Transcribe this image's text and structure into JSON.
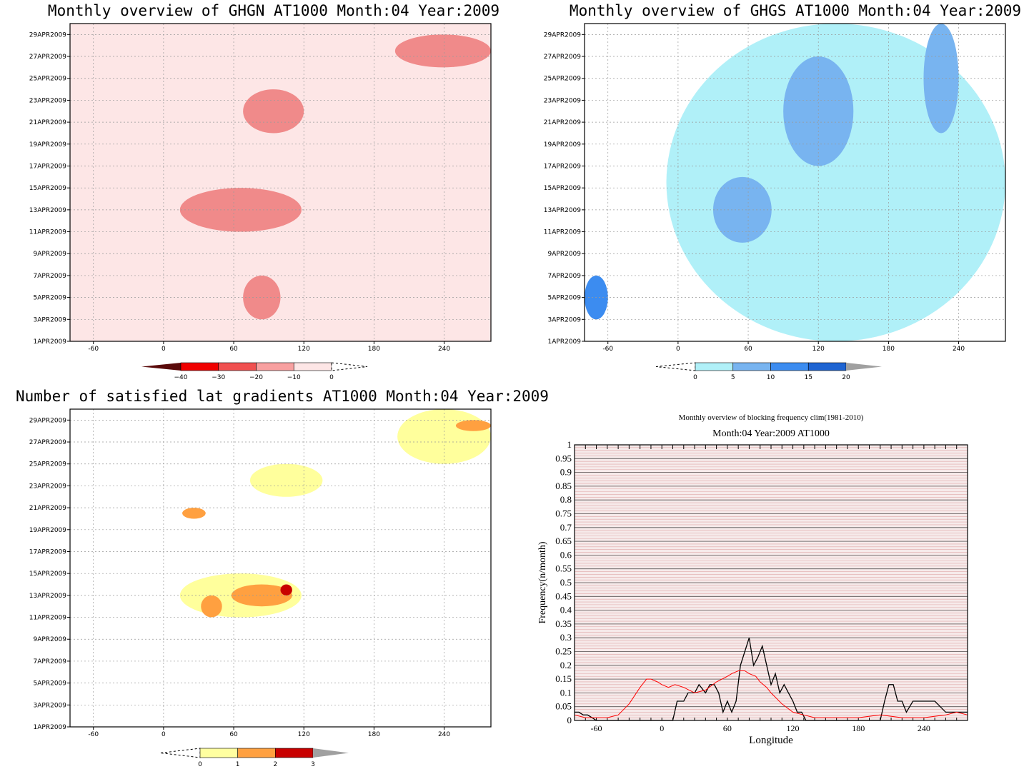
{
  "chart_data": [
    {
      "type": "heatmap",
      "title": "Monthly overview of GHGN AT1000 Month:04 Year:2009",
      "x_ticks": [
        "-60",
        "0",
        "60",
        "120",
        "180",
        "240"
      ],
      "x_tick_values": [
        -60,
        0,
        60,
        120,
        180,
        240
      ],
      "xlim": [
        -80,
        280
      ],
      "y_ticks": [
        "1APR2009",
        "3APR2009",
        "5APR2009",
        "7APR2009",
        "9APR2009",
        "11APR2009",
        "13APR2009",
        "15APR2009",
        "17APR2009",
        "19APR2009",
        "21APR2009",
        "23APR2009",
        "25APR2009",
        "27APR2009",
        "29APR2009"
      ],
      "ylim": [
        1,
        30
      ],
      "grid": true,
      "colorbar": {
        "labels": [
          "−40",
          "−30",
          "−20",
          "−10",
          "0"
        ],
        "colors": [
          "#5a0a0a",
          "#f00000",
          "#f05050",
          "#f8a0a0",
          "#fde6e6"
        ],
        "background": "#fde6e6"
      },
      "regions": [
        {
          "level": "-10 to 0",
          "color": "#fde6e6",
          "note": "field"
        },
        {
          "level": "-20 to -10",
          "color": "#f08a8a",
          "lon": [
            14,
            118
          ],
          "day": [
            11,
            15
          ]
        },
        {
          "level": "-20 to -10",
          "color": "#f08a8a",
          "lon": [
            68,
            120
          ],
          "day": [
            20,
            24
          ]
        },
        {
          "level": "-20 to -10",
          "color": "#f08a8a",
          "lon": [
            198,
            280
          ],
          "day": [
            26,
            29
          ]
        },
        {
          "level": "-20 to -10",
          "color": "#f08a8a",
          "lon": [
            68,
            100
          ],
          "day": [
            3,
            7
          ]
        }
      ]
    },
    {
      "type": "heatmap",
      "title": "Monthly overview of GHGS AT1000 Month:04 Year:2009",
      "x_ticks": [
        "-60",
        "0",
        "60",
        "120",
        "180",
        "240"
      ],
      "x_tick_values": [
        -60,
        0,
        60,
        120,
        180,
        240
      ],
      "xlim": [
        -80,
        280
      ],
      "y_ticks": [
        "1APR2009",
        "3APR2009",
        "5APR2009",
        "7APR2009",
        "9APR2009",
        "11APR2009",
        "13APR2009",
        "15APR2009",
        "17APR2009",
        "19APR2009",
        "21APR2009",
        "23APR2009",
        "25APR2009",
        "27APR2009",
        "29APR2009"
      ],
      "ylim": [
        1,
        30
      ],
      "grid": true,
      "colorbar": {
        "labels": [
          "0",
          "5",
          "10",
          "15",
          "20"
        ],
        "colors": [
          "#b0f0f8",
          "#78b4f0",
          "#3c8cf0",
          "#1e64d2",
          "#a0a0a0"
        ]
      },
      "regions": [
        {
          "level": "0 to 5",
          "color": "#b0f0f8",
          "lon": [
            -10,
            280
          ],
          "day": [
            1,
            30
          ]
        },
        {
          "level": "5 to 10",
          "color": "#78b4f0",
          "lon": [
            90,
            150
          ],
          "day": [
            17,
            27
          ]
        },
        {
          "level": "5 to 10",
          "color": "#78b4f0",
          "lon": [
            210,
            240
          ],
          "day": [
            20,
            30
          ]
        },
        {
          "level": "5 to 10",
          "color": "#78b4f0",
          "lon": [
            30,
            80
          ],
          "day": [
            10,
            16
          ]
        },
        {
          "level": "10 to 15",
          "color": "#3c8cf0",
          "lon": [
            -80,
            -60
          ],
          "day": [
            3,
            7
          ]
        }
      ]
    },
    {
      "type": "heatmap",
      "title": "Number of satisfied lat gradients AT1000 Month:04 Year:2009",
      "x_ticks": [
        "-60",
        "0",
        "60",
        "120",
        "180",
        "240"
      ],
      "x_tick_values": [
        -60,
        0,
        60,
        120,
        180,
        240
      ],
      "xlim": [
        -80,
        280
      ],
      "y_ticks": [
        "1APR2009",
        "3APR2009",
        "5APR2009",
        "7APR2009",
        "9APR2009",
        "11APR2009",
        "13APR2009",
        "15APR2009",
        "17APR2009",
        "19APR2009",
        "21APR2009",
        "23APR2009",
        "25APR2009",
        "27APR2009",
        "29APR2009"
      ],
      "ylim": [
        1,
        30
      ],
      "grid": true,
      "colorbar": {
        "labels": [
          "0",
          "1",
          "2",
          "3"
        ],
        "colors": [
          "#ffffa0",
          "#ffa040",
          "#c80000",
          "#a0a0a0"
        ]
      },
      "regions": [
        {
          "value": 1,
          "color": "#ffff9c",
          "lon": [
            14,
            118
          ],
          "day": [
            11,
            15
          ]
        },
        {
          "value": 2,
          "color": "#ffa040",
          "lon": [
            58,
            110
          ],
          "day": [
            12,
            14
          ]
        },
        {
          "value": 3,
          "color": "#c80000",
          "lon": [
            100,
            110
          ],
          "day": [
            13,
            14
          ]
        },
        {
          "value": 2,
          "color": "#ffa040",
          "lon": [
            32,
            50
          ],
          "day": [
            11,
            13
          ]
        },
        {
          "value": 1,
          "color": "#ffff9c",
          "lon": [
            74,
            136
          ],
          "day": [
            22,
            25
          ]
        },
        {
          "value": 2,
          "color": "#ffa040",
          "lon": [
            16,
            36
          ],
          "day": [
            20,
            21
          ]
        },
        {
          "value": 1,
          "color": "#ffff9c",
          "lon": [
            200,
            280
          ],
          "day": [
            25,
            30
          ]
        },
        {
          "value": 2,
          "color": "#ffa040",
          "lon": [
            250,
            280
          ],
          "day": [
            28,
            29
          ]
        }
      ]
    },
    {
      "type": "line",
      "title": "Monthly overview of blocking frequency clim(1981-2010)",
      "subtitle": "Month:04 Year:2009  AT1000",
      "xlabel": "Longitude",
      "ylabel": "Frequency(n/month)",
      "xlim": [
        -80,
        280
      ],
      "ylim": [
        0,
        1
      ],
      "x_ticks": [
        "-60",
        "0",
        "60",
        "120",
        "180",
        "240"
      ],
      "x_tick_values": [
        -60,
        0,
        60,
        120,
        180,
        240
      ],
      "y_ticks": [
        "0",
        "0.05",
        "0.1",
        "0.15",
        "0.2",
        "0.25",
        "0.3",
        "0.35",
        "0.4",
        "0.45",
        "0.5",
        "0.55",
        "0.6",
        "0.65",
        "0.7",
        "0.75",
        "0.8",
        "0.85",
        "0.9",
        "0.95",
        "1"
      ],
      "y_tick_values": [
        0,
        0.05,
        0.1,
        0.15,
        0.2,
        0.25,
        0.3,
        0.35,
        0.4,
        0.45,
        0.5,
        0.55,
        0.6,
        0.65,
        0.7,
        0.75,
        0.8,
        0.85,
        0.9,
        0.95,
        1
      ],
      "series": [
        {
          "color": "#000000",
          "x": [
            -80,
            -76,
            -72,
            -68,
            -64,
            -60,
            -40,
            -20,
            0,
            10,
            14,
            20,
            24,
            30,
            34,
            40,
            44,
            48,
            52,
            56,
            60,
            64,
            68,
            72,
            76,
            80,
            84,
            88,
            92,
            96,
            100,
            104,
            108,
            112,
            116,
            120,
            124,
            128,
            132,
            136,
            140,
            180,
            200,
            204,
            208,
            212,
            216,
            220,
            224,
            230,
            240,
            250,
            260,
            270,
            275,
            280
          ],
          "y": [
            0.03,
            0.03,
            0.02,
            0.02,
            0.01,
            0,
            0,
            0,
            0,
            0,
            0.07,
            0.07,
            0.1,
            0.1,
            0.13,
            0.1,
            0.13,
            0.13,
            0.1,
            0.03,
            0.07,
            0.03,
            0.07,
            0.2,
            0.25,
            0.3,
            0.2,
            0.23,
            0.27,
            0.2,
            0.13,
            0.17,
            0.1,
            0.13,
            0.1,
            0.07,
            0.03,
            0.03,
            0,
            0,
            0,
            0,
            0,
            0.07,
            0.13,
            0.13,
            0.07,
            0.07,
            0.03,
            0.07,
            0.07,
            0.07,
            0.03,
            0.03,
            0.03,
            0.03
          ]
        },
        {
          "color": "#ff0000",
          "x": [
            -80,
            -70,
            -60,
            -50,
            -40,
            -30,
            -20,
            -14,
            -10,
            -4,
            0,
            6,
            12,
            20,
            30,
            40,
            50,
            60,
            64,
            70,
            76,
            80,
            86,
            90,
            96,
            100,
            110,
            120,
            130,
            140,
            160,
            180,
            200,
            220,
            240,
            260,
            270,
            280
          ],
          "y": [
            0.02,
            0.01,
            0.01,
            0.01,
            0.02,
            0.06,
            0.12,
            0.15,
            0.15,
            0.14,
            0.13,
            0.12,
            0.13,
            0.12,
            0.1,
            0.11,
            0.14,
            0.16,
            0.17,
            0.18,
            0.18,
            0.17,
            0.16,
            0.14,
            0.12,
            0.1,
            0.06,
            0.03,
            0.02,
            0.01,
            0.01,
            0.01,
            0.02,
            0.01,
            0.01,
            0.02,
            0.03,
            0.02
          ]
        }
      ]
    }
  ]
}
